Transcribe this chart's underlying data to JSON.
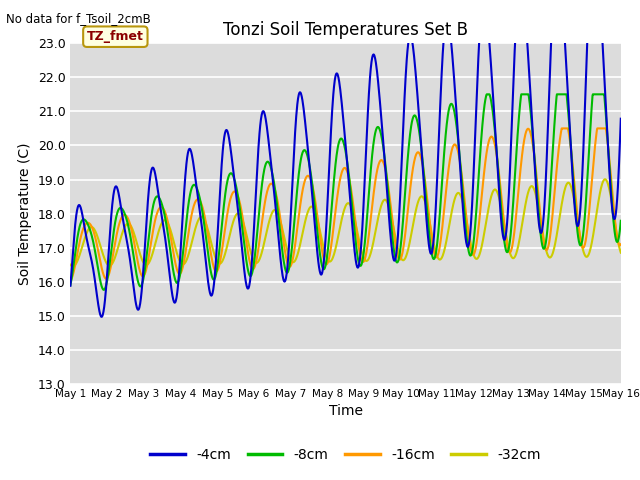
{
  "title": "Tonzi Soil Temperatures Set B",
  "no_data_text": "No data for f_Tsoil_2cmB",
  "tz_label": "TZ_fmet",
  "xlabel": "Time",
  "ylabel": "Soil Temperature (C)",
  "ylim": [
    13.0,
    23.0
  ],
  "yticks": [
    13.0,
    14.0,
    15.0,
    16.0,
    17.0,
    18.0,
    19.0,
    20.0,
    21.0,
    22.0,
    23.0
  ],
  "bg_color": "#dcdcdc",
  "fig_color": "#ffffff",
  "colors": {
    "-4cm": "#0000cc",
    "-8cm": "#00bb00",
    "-16cm": "#ff9900",
    "-32cm": "#cccc00"
  },
  "legend_labels": [
    "-4cm",
    "-8cm",
    "-16cm",
    "-32cm"
  ],
  "xtick_labels": [
    "May 1",
    "May 2",
    "May 3",
    "May 4",
    "May 5",
    "May 6",
    "May 7",
    "May 8",
    "May 9",
    "May 10",
    "May 11",
    "May 12",
    "May 13",
    "May 14",
    "May 15",
    "May 16"
  ]
}
